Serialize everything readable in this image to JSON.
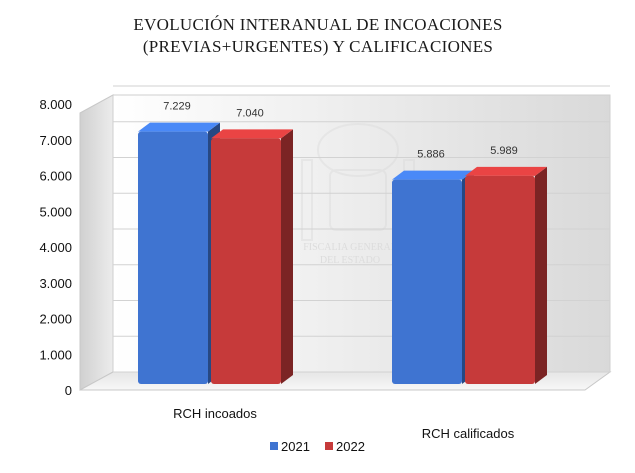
{
  "chart_data": {
    "type": "bar",
    "title_lines": [
      "EVOLUCIÓN INTERANUAL DE INCOACIONES",
      "(PREVIAS+URGENTES) Y CALIFICACIONES"
    ],
    "categories": [
      "RCH incoados",
      "RCH calificados"
    ],
    "series": [
      {
        "name": "2021",
        "values": [
          7229,
          5886
        ],
        "labels": [
          "7.229",
          "5.886"
        ],
        "color": "#3f74d1"
      },
      {
        "name": "2022",
        "values": [
          7040,
          5989
        ],
        "labels": [
          "7.040",
          "5.989"
        ],
        "color": "#c63a3a"
      }
    ],
    "ylim": [
      0,
      8000
    ],
    "yticks": [
      0,
      1000,
      2000,
      3000,
      4000,
      5000,
      6000,
      7000,
      8000
    ],
    "ytick_labels": [
      "0",
      "1.000",
      "2.000",
      "3.000",
      "4.000",
      "5.000",
      "6.000",
      "7.000",
      "8.000"
    ],
    "grid": true,
    "legend_position": "bottom",
    "watermark_lines": [
      "FISCALIA GENERAL",
      "DEL ESTADO"
    ]
  }
}
